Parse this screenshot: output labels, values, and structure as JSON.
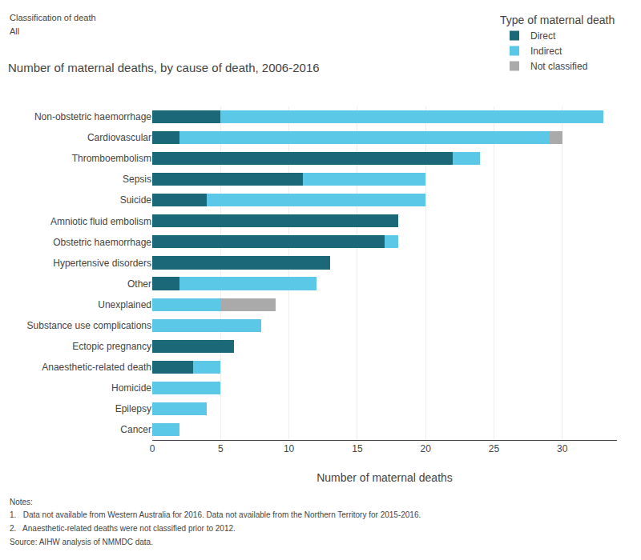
{
  "chart_data": {
    "type": "bar",
    "orientation": "horizontal",
    "stacked": true,
    "title": "Number of maternal deaths, by cause of death, 2006-2016",
    "xlabel": "Number of maternal deaths",
    "legend_title": "Type of maternal death",
    "legend": "top right",
    "grid": true,
    "categories": [
      "Non-obstetric haemorrhage",
      "Cardiovascular",
      "Thromboembolism",
      "Sepsis",
      "Suicide",
      "Amniotic fluid embolism",
      "Obstetric haemorrhage",
      "Hypertensive disorders",
      "Other",
      "Unexplained",
      "Substance use complications",
      "Ectopic pregnancy",
      "Anaesthetic-related death",
      "Homicide",
      "Epilepsy",
      "Cancer"
    ],
    "series": [
      {
        "name": "Direct",
        "color": "#1a6878",
        "values": [
          5,
          2,
          22,
          11,
          4,
          18,
          17,
          13,
          2,
          0,
          0,
          6,
          3,
          0,
          0,
          0
        ]
      },
      {
        "name": "Indirect",
        "color": "#5bc8e8",
        "values": [
          28,
          27,
          2,
          9,
          16,
          0,
          1,
          0,
          10,
          5,
          8,
          0,
          2,
          5,
          4,
          2
        ]
      },
      {
        "name": "Not classified",
        "color": "#aaaaaa",
        "values": [
          0,
          1,
          0,
          0,
          0,
          0,
          0,
          0,
          0,
          4,
          0,
          0,
          0,
          0,
          0,
          0
        ]
      }
    ],
    "xlim": [
      0,
      34
    ],
    "xticks": [
      0,
      5,
      10,
      15,
      20,
      25,
      30
    ],
    "annotations": [
      "Classification of death",
      "All",
      "Notes:",
      "1.   Data not available from Western Australia for 2016. Data not available from the Northern Territory for 2015-2016.",
      "2.   Anaesthetic-related deaths were not classified prior to 2012.",
      "Source: AIHW analysis of ",
      "NMMDC data."
    ]
  }
}
